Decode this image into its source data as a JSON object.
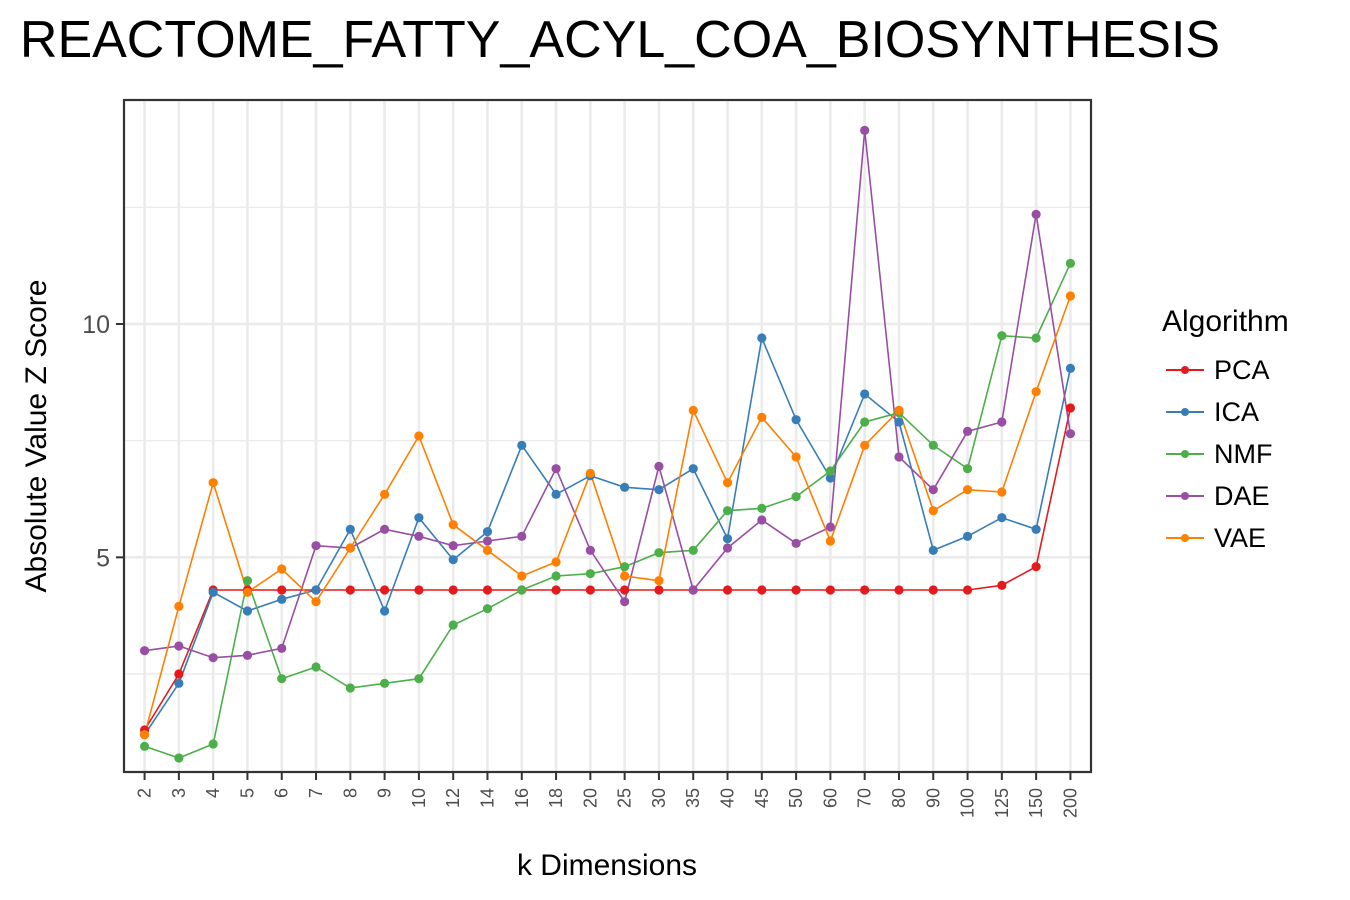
{
  "chart_data": {
    "type": "line",
    "title": "REACTOME_FATTY_ACYL_COA_BIOSYNTHESIS",
    "xlabel": "k Dimensions",
    "ylabel": "Absolute Value Z Score",
    "categories": [
      "2",
      "3",
      "4",
      "5",
      "6",
      "7",
      "8",
      "9",
      "10",
      "12",
      "14",
      "16",
      "18",
      "20",
      "25",
      "30",
      "35",
      "40",
      "45",
      "50",
      "60",
      "70",
      "80",
      "90",
      "100",
      "125",
      "150",
      "200"
    ],
    "ylim": [
      0.4,
      14.8
    ],
    "y_ticks": [
      5,
      10
    ],
    "y_tick_labels": [
      "5",
      "10"
    ],
    "grid": true,
    "legend_title": "Algorithm",
    "legend_position": "right",
    "series": [
      {
        "name": "PCA",
        "color": "#E41A1C",
        "values": [
          1.3,
          2.5,
          4.3,
          4.3,
          4.3,
          4.3,
          4.3,
          4.3,
          4.3,
          4.3,
          4.3,
          4.3,
          4.3,
          4.3,
          4.3,
          4.3,
          4.3,
          4.3,
          4.3,
          4.3,
          4.3,
          4.3,
          4.3,
          4.3,
          4.3,
          4.4,
          4.8,
          8.2
        ]
      },
      {
        "name": "ICA",
        "color": "#377EB8",
        "values": [
          1.2,
          2.3,
          4.25,
          3.85,
          4.1,
          4.3,
          5.6,
          3.85,
          5.85,
          4.95,
          5.55,
          7.4,
          6.35,
          6.75,
          6.5,
          6.45,
          6.9,
          5.4,
          9.7,
          7.95,
          6.7,
          8.5,
          7.9,
          5.15,
          5.45,
          5.85,
          5.6,
          9.05
        ]
      },
      {
        "name": "NMF",
        "color": "#4DAF4A",
        "values": [
          0.95,
          0.7,
          1.0,
          4.5,
          2.4,
          2.65,
          2.2,
          2.3,
          2.4,
          3.55,
          3.9,
          4.3,
          4.6,
          4.65,
          4.8,
          5.1,
          5.15,
          6.0,
          6.05,
          6.3,
          6.85,
          7.9,
          8.1,
          7.4,
          6.9,
          9.75,
          9.7,
          11.3
        ]
      },
      {
        "name": "DAE",
        "color": "#984EA3",
        "values": [
          3.0,
          3.1,
          2.85,
          2.9,
          3.05,
          5.25,
          5.2,
          5.6,
          5.45,
          5.25,
          5.35,
          5.45,
          6.9,
          5.15,
          4.05,
          6.95,
          4.3,
          5.2,
          5.8,
          5.3,
          5.65,
          14.15,
          7.15,
          6.45,
          7.7,
          7.9,
          12.35,
          7.65
        ]
      },
      {
        "name": "VAE",
        "color": "#FF7F00",
        "values": [
          1.2,
          3.95,
          6.6,
          4.25,
          4.75,
          4.05,
          5.2,
          6.35,
          7.6,
          5.7,
          5.15,
          4.6,
          4.9,
          6.8,
          4.6,
          4.5,
          8.15,
          6.6,
          8.0,
          7.15,
          5.35,
          7.4,
          8.15,
          6.0,
          6.45,
          6.4,
          8.55,
          10.6
        ]
      }
    ]
  }
}
